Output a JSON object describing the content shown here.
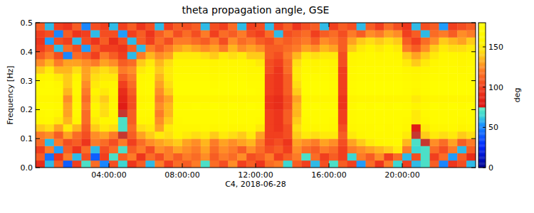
{
  "chart_data": {
    "type": "heatmap",
    "title": "theta propagation angle, GSE",
    "x_label": "C4, 2018-06-28",
    "y_label": "Frequency [Hz]",
    "xlim": [
      0,
      24
    ],
    "ylim": [
      0,
      0.5
    ],
    "xticks": [
      {
        "value": 4,
        "label": "04:00:00"
      },
      {
        "value": 8,
        "label": "08:00:00"
      },
      {
        "value": 12,
        "label": "12:00:00"
      },
      {
        "value": 16,
        "label": "16:00:00"
      },
      {
        "value": 20,
        "label": "20:00:00"
      }
    ],
    "yticks": [
      {
        "value": 0,
        "label": "0.0"
      },
      0.1,
      0.2,
      0.3,
      0.4,
      0.5
    ],
    "colorbar_lim": [
      0,
      180
    ],
    "colorbar_ticks": [
      0,
      50,
      100,
      150
    ],
    "colorbar_label": "deg",
    "x": [
      0,
      0.5,
      1,
      1.5,
      2,
      2.5,
      3,
      3.5,
      4,
      4.5,
      5,
      5.5,
      6,
      6.5,
      7,
      7.5,
      8,
      8.5,
      9,
      9.5,
      10,
      10.5,
      11,
      11.5,
      12,
      12.5,
      13,
      13.5,
      14,
      14.5,
      15,
      15.5,
      16,
      16.5,
      17,
      17.5,
      18,
      18.5,
      19,
      19.5,
      20,
      20.5,
      21,
      21.5,
      22,
      22.5,
      23,
      23.5
    ],
    "y": [
      0,
      0.025,
      0.05,
      0.075,
      0.1,
      0.125,
      0.15,
      0.175,
      0.2,
      0.225,
      0.25,
      0.275,
      0.3,
      0.325,
      0.35,
      0.375,
      0.4,
      0.425,
      0.45,
      0.475
    ],
    "cells": [
      [
        90,
        60,
        110,
        40,
        100,
        70,
        115,
        50,
        105,
        65,
        95,
        110,
        60,
        120,
        100,
        115,
        110,
        120,
        70,
        115,
        105,
        125,
        100,
        110,
        95,
        115,
        120,
        65,
        110,
        100,
        60,
        105,
        70,
        110,
        100,
        55,
        115,
        95,
        120,
        65,
        100,
        60,
        70,
        110,
        50,
        95,
        105,
        60
      ],
      [
        110,
        45,
        95,
        120,
        60,
        105,
        40,
        100,
        70,
        110,
        120,
        95,
        115,
        105,
        120,
        110,
        120,
        115,
        125,
        110,
        120,
        115,
        125,
        105,
        110,
        120,
        100,
        110,
        120,
        70,
        115,
        100,
        110,
        100,
        65,
        120,
        110,
        125,
        100,
        115,
        60,
        105,
        70,
        100,
        115,
        55,
        110,
        90
      ],
      [
        100,
        120,
        55,
        110,
        95,
        115,
        60,
        105,
        115,
        70,
        110,
        120,
        105,
        125,
        120,
        130,
        125,
        120,
        130,
        115,
        125,
        120,
        110,
        125,
        115,
        105,
        110,
        100,
        125,
        115,
        110,
        120,
        115,
        100,
        120,
        125,
        130,
        135,
        140,
        150,
        120,
        65,
        70,
        115,
        105,
        120,
        60,
        110
      ],
      [
        115,
        60,
        120,
        105,
        110,
        95,
        120,
        115,
        105,
        120,
        100,
        115,
        125,
        130,
        135,
        140,
        130,
        125,
        135,
        120,
        130,
        125,
        130,
        135,
        120,
        100,
        105,
        95,
        130,
        125,
        120,
        130,
        125,
        105,
        130,
        140,
        150,
        155,
        160,
        165,
        135,
        70,
        75,
        125,
        115,
        130,
        110,
        120
      ],
      [
        120,
        125,
        110,
        130,
        115,
        105,
        125,
        130,
        120,
        75,
        110,
        130,
        140,
        150,
        145,
        155,
        150,
        145,
        150,
        140,
        150,
        145,
        140,
        150,
        130,
        100,
        100,
        105,
        140,
        150,
        145,
        150,
        150,
        110,
        150,
        160,
        165,
        165,
        165,
        165,
        150,
        75,
        140,
        150,
        145,
        150,
        140,
        145
      ],
      [
        140,
        145,
        130,
        150,
        135,
        110,
        140,
        150,
        145,
        70,
        115,
        145,
        150,
        130,
        150,
        160,
        160,
        160,
        165,
        160,
        165,
        160,
        160,
        165,
        150,
        100,
        95,
        105,
        145,
        160,
        160,
        165,
        160,
        105,
        160,
        165,
        165,
        170,
        165,
        170,
        160,
        80,
        150,
        160,
        160,
        165,
        155,
        160
      ],
      [
        160,
        165,
        150,
        135,
        155,
        115,
        150,
        160,
        160,
        70,
        110,
        160,
        160,
        125,
        140,
        165,
        170,
        170,
        170,
        170,
        170,
        170,
        170,
        170,
        165,
        100,
        95,
        110,
        140,
        165,
        170,
        170,
        165,
        100,
        165,
        170,
        170,
        170,
        170,
        170,
        165,
        150,
        160,
        170,
        170,
        170,
        165,
        170
      ],
      [
        165,
        170,
        160,
        130,
        165,
        115,
        155,
        145,
        165,
        75,
        110,
        165,
        165,
        120,
        135,
        170,
        170,
        170,
        170,
        170,
        170,
        170,
        170,
        170,
        170,
        100,
        95,
        110,
        135,
        170,
        170,
        170,
        170,
        100,
        165,
        170,
        170,
        170,
        170,
        170,
        170,
        150,
        165,
        170,
        170,
        170,
        170,
        170
      ],
      [
        170,
        170,
        165,
        130,
        165,
        120,
        160,
        145,
        165,
        80,
        105,
        165,
        170,
        125,
        135,
        170,
        170,
        175,
        170,
        175,
        170,
        175,
        170,
        175,
        170,
        95,
        90,
        105,
        135,
        170,
        175,
        170,
        170,
        95,
        165,
        175,
        170,
        175,
        170,
        175,
        170,
        155,
        165,
        175,
        170,
        175,
        170,
        175
      ],
      [
        160,
        160,
        155,
        125,
        155,
        115,
        150,
        140,
        155,
        85,
        105,
        155,
        160,
        120,
        130,
        160,
        160,
        160,
        160,
        160,
        160,
        160,
        160,
        160,
        160,
        95,
        90,
        105,
        130,
        160,
        160,
        160,
        160,
        95,
        155,
        160,
        160,
        160,
        160,
        160,
        160,
        150,
        155,
        160,
        160,
        160,
        160,
        160
      ],
      [
        170,
        170,
        165,
        135,
        165,
        120,
        155,
        150,
        165,
        90,
        110,
        165,
        170,
        125,
        140,
        175,
        175,
        175,
        175,
        175,
        175,
        175,
        175,
        175,
        170,
        100,
        95,
        110,
        140,
        175,
        175,
        175,
        170,
        100,
        170,
        175,
        175,
        175,
        175,
        175,
        170,
        160,
        170,
        175,
        175,
        175,
        175,
        175
      ],
      [
        165,
        170,
        160,
        140,
        165,
        125,
        150,
        155,
        160,
        100,
        115,
        165,
        170,
        130,
        145,
        175,
        175,
        175,
        175,
        170,
        175,
        175,
        175,
        170,
        170,
        100,
        95,
        110,
        145,
        175,
        175,
        175,
        170,
        100,
        170,
        175,
        175,
        175,
        175,
        175,
        170,
        165,
        170,
        175,
        175,
        175,
        175,
        175
      ],
      [
        155,
        160,
        150,
        140,
        155,
        130,
        145,
        150,
        150,
        110,
        120,
        160,
        165,
        135,
        150,
        170,
        170,
        170,
        170,
        165,
        170,
        170,
        170,
        165,
        165,
        100,
        95,
        110,
        150,
        170,
        170,
        170,
        165,
        100,
        165,
        170,
        170,
        170,
        170,
        170,
        165,
        160,
        165,
        170,
        170,
        170,
        170,
        170
      ],
      [
        140,
        150,
        135,
        135,
        145,
        130,
        140,
        145,
        140,
        120,
        125,
        150,
        160,
        140,
        150,
        165,
        165,
        165,
        165,
        160,
        165,
        165,
        165,
        160,
        160,
        105,
        95,
        115,
        150,
        165,
        160,
        165,
        160,
        100,
        165,
        170,
        170,
        170,
        170,
        170,
        160,
        155,
        160,
        165,
        170,
        170,
        165,
        170
      ],
      [
        125,
        135,
        120,
        130,
        130,
        125,
        120,
        130,
        125,
        110,
        115,
        140,
        150,
        135,
        145,
        160,
        160,
        160,
        160,
        155,
        160,
        160,
        160,
        155,
        150,
        105,
        100,
        115,
        145,
        160,
        155,
        160,
        155,
        105,
        160,
        165,
        165,
        165,
        165,
        165,
        150,
        140,
        150,
        160,
        165,
        165,
        160,
        165
      ],
      [
        110,
        120,
        105,
        50,
        115,
        110,
        100,
        120,
        110,
        100,
        60,
        120,
        135,
        125,
        130,
        150,
        150,
        150,
        145,
        140,
        150,
        145,
        150,
        140,
        140,
        110,
        105,
        120,
        135,
        150,
        145,
        150,
        150,
        105,
        155,
        160,
        165,
        160,
        165,
        160,
        140,
        130,
        140,
        150,
        160,
        160,
        155,
        160
      ],
      [
        100,
        110,
        60,
        115,
        105,
        55,
        110,
        100,
        100,
        95,
        110,
        60,
        120,
        110,
        120,
        130,
        135,
        130,
        125,
        130,
        120,
        135,
        125,
        130,
        125,
        110,
        110,
        115,
        120,
        130,
        125,
        135,
        130,
        110,
        140,
        150,
        155,
        150,
        155,
        150,
        120,
        110,
        125,
        140,
        150,
        145,
        145,
        150
      ],
      [
        95,
        55,
        105,
        100,
        60,
        105,
        95,
        110,
        90,
        105,
        60,
        110,
        100,
        115,
        105,
        120,
        120,
        115,
        110,
        120,
        105,
        125,
        115,
        120,
        110,
        105,
        115,
        110,
        115,
        120,
        110,
        125,
        120,
        110,
        130,
        140,
        145,
        140,
        145,
        140,
        110,
        100,
        115,
        125,
        140,
        135,
        130,
        140
      ],
      [
        100,
        105,
        50,
        110,
        95,
        100,
        60,
        105,
        105,
        55,
        100,
        110,
        95,
        110,
        120,
        105,
        115,
        105,
        120,
        100,
        115,
        110,
        120,
        105,
        100,
        115,
        60,
        105,
        110,
        115,
        100,
        110,
        115,
        105,
        120,
        110,
        125,
        120,
        130,
        125,
        100,
        110,
        60,
        115,
        120,
        110,
        125,
        120
      ],
      [
        110,
        60,
        100,
        95,
        110,
        50,
        105,
        100,
        60,
        100,
        110,
        95,
        105,
        60,
        100,
        110,
        105,
        110,
        60,
        105,
        100,
        115,
        60,
        100,
        105,
        60,
        100,
        110,
        95,
        105,
        110,
        60,
        100,
        110,
        105,
        60,
        110,
        100,
        115,
        105,
        95,
        60,
        105,
        110,
        55,
        100,
        105,
        110
      ]
    ]
  }
}
